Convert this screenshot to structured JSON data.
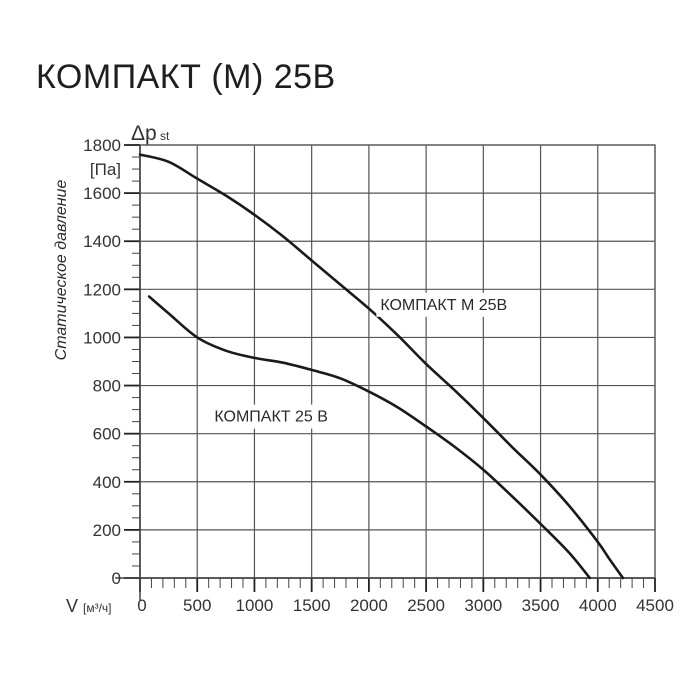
{
  "title": "КОМПАКТ (М) 25В",
  "chart_data": {
    "type": "line",
    "title": "КОМПАКТ (М) 25В",
    "xlabel": "V [м³/ч]",
    "ylabel": "Статическое давление",
    "ylabel_symbol": "Δp st",
    "ylabel_unit": "[Па]",
    "xlim": [
      0,
      4500
    ],
    "ylim": [
      0,
      1800
    ],
    "grid": true,
    "x_ticks": [
      0,
      500,
      1000,
      1500,
      2000,
      2500,
      3000,
      3500,
      4000,
      4500
    ],
    "y_ticks": [
      0,
      200,
      400,
      600,
      800,
      1000,
      1200,
      1400,
      1600,
      1800
    ],
    "series": [
      {
        "name": "КОМПАКТ М 25В",
        "x": [
          0,
          250,
          500,
          750,
          1000,
          1250,
          1500,
          1750,
          2000,
          2250,
          2500,
          2750,
          3000,
          3250,
          3500,
          3750,
          4000,
          4100,
          4220
        ],
        "y": [
          1760,
          1730,
          1660,
          1590,
          1510,
          1420,
          1320,
          1220,
          1120,
          1010,
          890,
          780,
          665,
          545,
          430,
          300,
          150,
          80,
          0
        ]
      },
      {
        "name": "КОМПАКТ 25 В",
        "x": [
          80,
          250,
          500,
          750,
          1000,
          1250,
          1500,
          1750,
          2000,
          2250,
          2500,
          2750,
          3000,
          3250,
          3500,
          3750,
          3930
        ],
        "y": [
          1170,
          1100,
          1000,
          945,
          915,
          895,
          865,
          830,
          775,
          710,
          630,
          545,
          450,
          340,
          225,
          105,
          0
        ]
      }
    ],
    "annotations": [
      {
        "text": "КОМПАКТ М 25В",
        "x": 2100,
        "y": 1115
      },
      {
        "text": "КОМПАКТ 25 В",
        "x": 650,
        "y": 650
      }
    ]
  }
}
